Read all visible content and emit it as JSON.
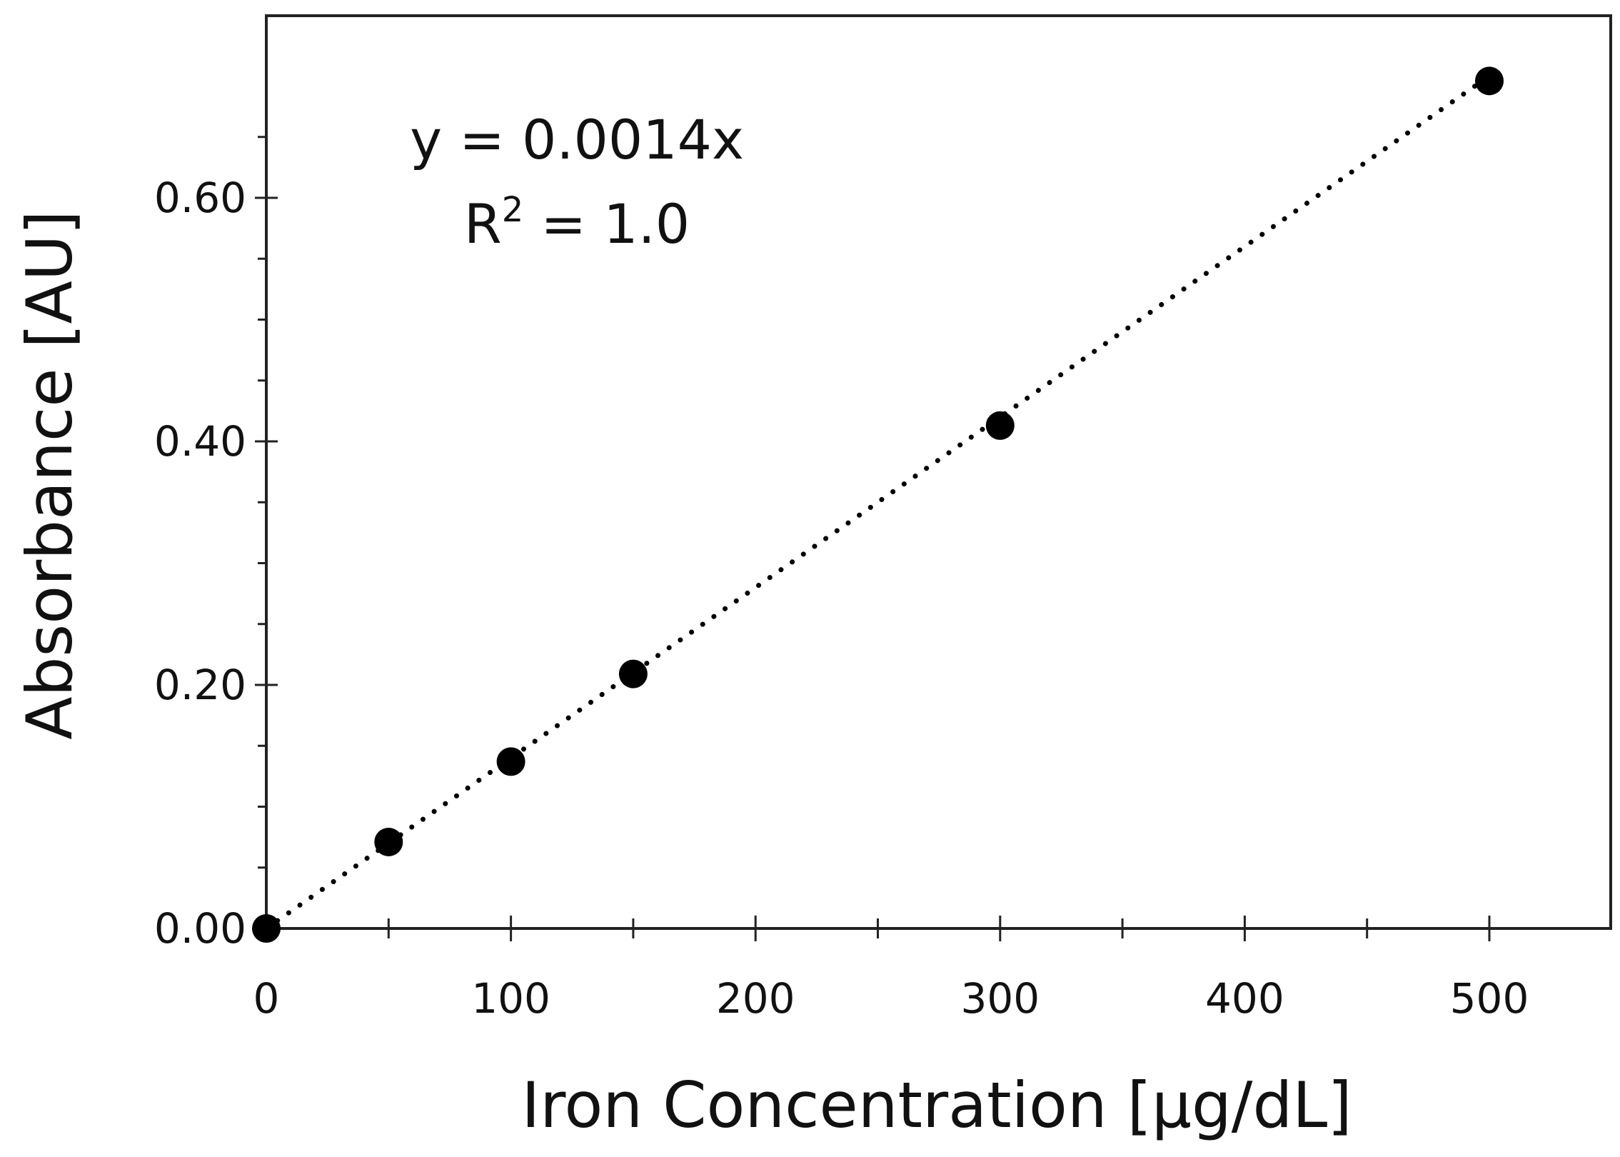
{
  "chart_data": {
    "type": "scatter",
    "xlabel": "Iron Concentration [µg/dL]",
    "ylabel": "Absorbance [AU]",
    "xlim": [
      0,
      550
    ],
    "ylim": [
      0,
      0.7
    ],
    "x_ticks": [
      0,
      100,
      200,
      300,
      400,
      500
    ],
    "x_tick_labels": [
      "0",
      "100",
      "200",
      "300",
      "400",
      "500"
    ],
    "x_minor_ticks": [
      50,
      150,
      250,
      350,
      450
    ],
    "y_ticks": [
      0,
      0.2,
      0.4,
      0.6
    ],
    "y_tick_labels": [
      "0.00",
      "0.20",
      "0.40",
      "0.60"
    ],
    "y_minor_ticks": [
      0.05,
      0.1,
      0.15,
      0.25,
      0.3,
      0.35,
      0.45,
      0.5,
      0.55,
      0.65
    ],
    "series": [
      {
        "x": [
          0,
          50,
          100,
          150,
          300,
          500
        ],
        "y": [
          0.0,
          0.071,
          0.137,
          0.209,
          0.413,
          0.696
        ]
      }
    ],
    "trendline": {
      "style": "dotted",
      "slope": 0.0014,
      "intercept": 0,
      "x_range": [
        0,
        500
      ]
    },
    "annotation": {
      "equation": "y = 0.0014x",
      "r2_prefix": "R",
      "r2_superscript": "2",
      "r2_suffix": " = 1.0"
    },
    "grid": false,
    "legend": "none",
    "colors": {
      "marker": "#000000",
      "axis": "#222222",
      "text": "#111111"
    }
  }
}
